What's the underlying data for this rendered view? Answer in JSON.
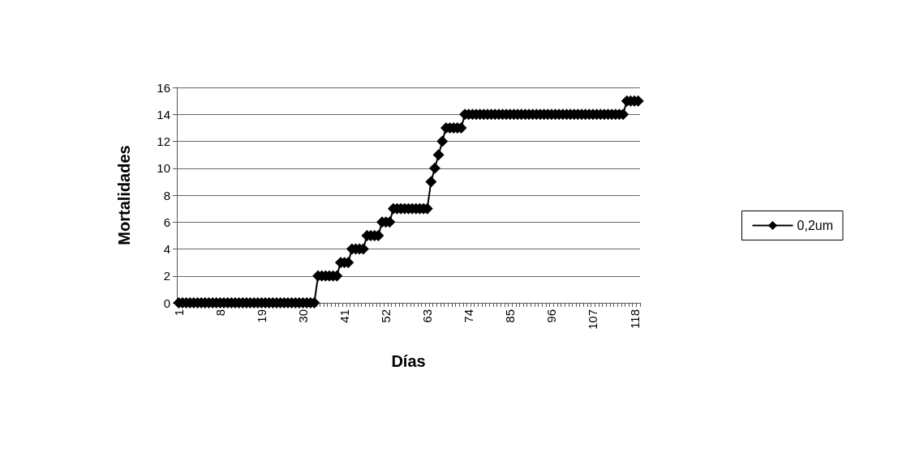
{
  "chart_data": {
    "type": "line",
    "xlabel": "Días",
    "ylabel": "Mortalidades",
    "categories": [
      "1",
      null,
      null,
      null,
      null,
      null,
      null,
      null,
      null,
      null,
      null,
      "8",
      null,
      null,
      null,
      null,
      null,
      null,
      null,
      null,
      null,
      null,
      "19",
      null,
      null,
      null,
      null,
      null,
      null,
      null,
      null,
      null,
      null,
      "30",
      null,
      null,
      null,
      null,
      null,
      null,
      null,
      null,
      null,
      null,
      "41",
      null,
      null,
      null,
      null,
      null,
      null,
      null,
      null,
      null,
      null,
      "52",
      null,
      null,
      null,
      null,
      null,
      null,
      null,
      null,
      null,
      null,
      "63",
      null,
      null,
      null,
      null,
      null,
      null,
      null,
      null,
      null,
      null,
      "74",
      null,
      null,
      null,
      null,
      null,
      null,
      null,
      null,
      null,
      null,
      "85",
      null,
      null,
      null,
      null,
      null,
      null,
      null,
      null,
      null,
      null,
      "96",
      null,
      null,
      null,
      null,
      null,
      null,
      null,
      null,
      null,
      null,
      "107",
      null,
      null,
      null,
      null,
      null,
      null,
      null,
      null,
      null,
      null,
      "118",
      null
    ],
    "series": [
      {
        "name": "0,2um",
        "color": "#000000",
        "values": [
          0,
          0,
          0,
          0,
          0,
          0,
          0,
          0,
          0,
          0,
          0,
          0,
          0,
          0,
          0,
          0,
          0,
          0,
          0,
          0,
          0,
          0,
          0,
          0,
          0,
          0,
          0,
          0,
          0,
          0,
          0,
          0,
          0,
          0,
          0,
          0,
          0,
          2,
          2,
          2,
          2,
          2,
          2,
          3,
          3,
          3,
          4,
          4,
          4,
          4,
          5,
          5,
          5,
          5,
          6,
          6,
          6,
          7,
          7,
          7,
          7,
          7,
          7,
          7,
          7,
          7,
          7,
          9,
          10,
          11,
          12,
          13,
          13,
          13,
          13,
          13,
          14,
          14,
          14,
          14,
          14,
          14,
          14,
          14,
          14,
          14,
          14,
          14,
          14,
          14,
          14,
          14,
          14,
          14,
          14,
          14,
          14,
          14,
          14,
          14,
          14,
          14,
          14,
          14,
          14,
          14,
          14,
          14,
          14,
          14,
          14,
          14,
          14,
          14,
          14,
          14,
          14,
          14,
          14,
          15,
          15,
          15,
          15
        ]
      }
    ],
    "ylim": [
      0,
      16
    ],
    "yticks": [
      0,
      2,
      4,
      6,
      8,
      10,
      12,
      14,
      16
    ],
    "grid": "y",
    "legend": "right",
    "marker": "diamond",
    "line_style": "solid"
  }
}
